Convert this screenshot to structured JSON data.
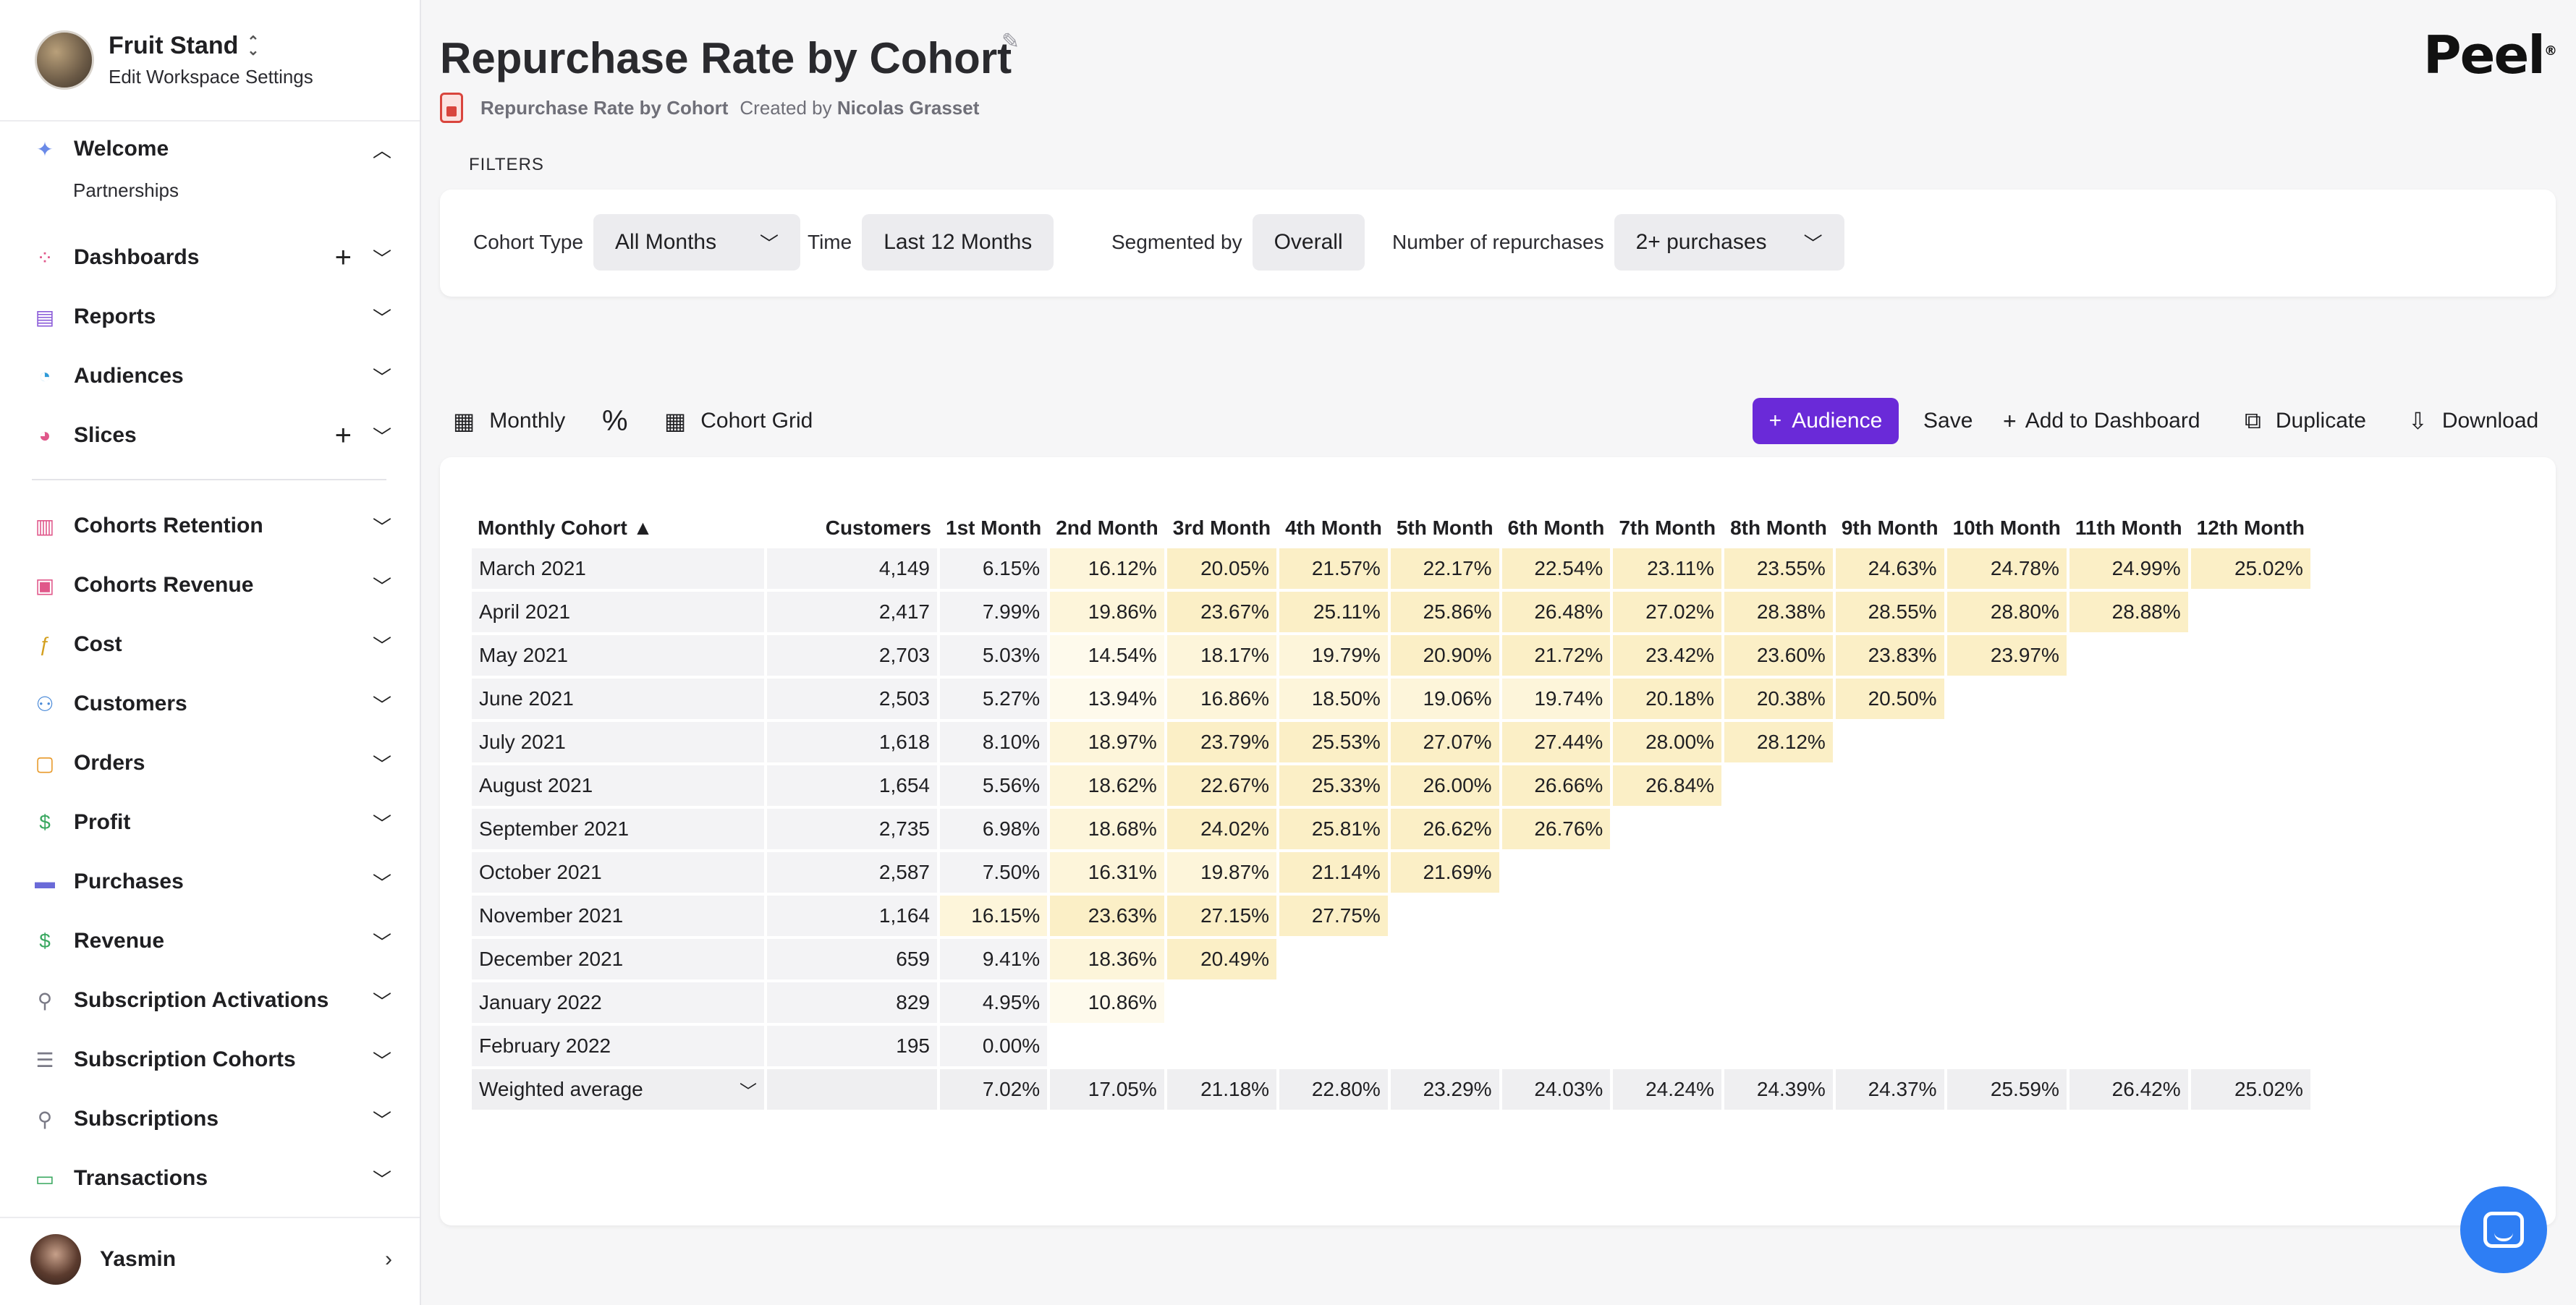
{
  "workspace": {
    "name": "Fruit Stand",
    "sub": "Edit Workspace Settings"
  },
  "nav": {
    "welcome": {
      "label": "Welcome",
      "sub": "Partnerships"
    },
    "items": [
      {
        "label": "Dashboards",
        "icon": "grid-icon",
        "color": "#e0578a",
        "plus": true
      },
      {
        "label": "Reports",
        "icon": "document-icon",
        "color": "#8a5ad8",
        "plus": false
      },
      {
        "label": "Audiences",
        "icon": "flame-icon",
        "color": "#2e9ad8",
        "plus": false
      },
      {
        "label": "Slices",
        "icon": "pie-icon",
        "color": "#e0578a",
        "plus": true
      }
    ],
    "items2": [
      {
        "label": "Cohorts Retention",
        "icon": "jar-icon",
        "color": "#e0578a"
      },
      {
        "label": "Cohorts Revenue",
        "icon": "robot-icon",
        "color": "#e0578a"
      },
      {
        "label": "Cost",
        "icon": "function-icon",
        "color": "#d4a020"
      },
      {
        "label": "Customers",
        "icon": "people-icon",
        "color": "#4a8ad8"
      },
      {
        "label": "Orders",
        "icon": "bag-icon",
        "color": "#e89a2a"
      },
      {
        "label": "Profit",
        "icon": "dollar-icon",
        "color": "#3aa860"
      },
      {
        "label": "Purchases",
        "icon": "card-icon",
        "color": "#6a6ad8"
      },
      {
        "label": "Revenue",
        "icon": "dollar-box-icon",
        "color": "#3aa860"
      },
      {
        "label": "Subscription Activations",
        "icon": "user-check-icon",
        "color": "#7a7a86"
      },
      {
        "label": "Subscription Cohorts",
        "icon": "stack-icon",
        "color": "#7a7a86"
      },
      {
        "label": "Subscriptions",
        "icon": "user-check-icon",
        "color": "#7a7a86"
      },
      {
        "label": "Transactions",
        "icon": "credit-card-icon",
        "color": "#3aa860"
      }
    ]
  },
  "user": {
    "name": "Yasmin"
  },
  "header": {
    "title": "Repurchase Rate by Cohort",
    "sub_title": "Repurchase Rate by Cohort",
    "created_prefix": "Created by",
    "created_by": "Nicolas Grasset",
    "logo": "Peel",
    "filters_label": "FILTERS"
  },
  "filters": {
    "cohort_type": {
      "label": "Cohort Type",
      "value": "All Months"
    },
    "time": {
      "label": "Time",
      "value": "Last 12 Months"
    },
    "segmented": {
      "label": "Segmented by",
      "value": "Overall"
    },
    "repurchases": {
      "label": "Number of repurchases",
      "value": "2+ purchases"
    }
  },
  "toolbar": {
    "monthly": "Monthly",
    "percent": "%",
    "cohort_grid": "Cohort Grid",
    "audience": "Audience",
    "save": "Save",
    "add_dashboard": "Add to Dashboard",
    "duplicate": "Duplicate",
    "download": "Download"
  },
  "table": {
    "headers": [
      "Monthly Cohort ▲",
      "Customers",
      "1st Month",
      "2nd Month",
      "3rd Month",
      "4th Month",
      "5th Month",
      "6th Month",
      "7th Month",
      "8th Month",
      "9th Month",
      "10th Month",
      "11th Month",
      "12th Month"
    ],
    "rows": [
      {
        "cohort": "March 2021",
        "customers": "4,149",
        "values": [
          "6.15%",
          "16.12%",
          "20.05%",
          "21.57%",
          "22.17%",
          "22.54%",
          "23.11%",
          "23.55%",
          "24.63%",
          "24.78%",
          "24.99%",
          "25.02%"
        ]
      },
      {
        "cohort": "April 2021",
        "customers": "2,417",
        "values": [
          "7.99%",
          "19.86%",
          "23.67%",
          "25.11%",
          "25.86%",
          "26.48%",
          "27.02%",
          "28.38%",
          "28.55%",
          "28.80%",
          "28.88%"
        ]
      },
      {
        "cohort": "May 2021",
        "customers": "2,703",
        "values": [
          "5.03%",
          "14.54%",
          "18.17%",
          "19.79%",
          "20.90%",
          "21.72%",
          "23.42%",
          "23.60%",
          "23.83%",
          "23.97%"
        ]
      },
      {
        "cohort": "June 2021",
        "customers": "2,503",
        "values": [
          "5.27%",
          "13.94%",
          "16.86%",
          "18.50%",
          "19.06%",
          "19.74%",
          "20.18%",
          "20.38%",
          "20.50%"
        ]
      },
      {
        "cohort": "July 2021",
        "customers": "1,618",
        "values": [
          "8.10%",
          "18.97%",
          "23.79%",
          "25.53%",
          "27.07%",
          "27.44%",
          "28.00%",
          "28.12%"
        ]
      },
      {
        "cohort": "August 2021",
        "customers": "1,654",
        "values": [
          "5.56%",
          "18.62%",
          "22.67%",
          "25.33%",
          "26.00%",
          "26.66%",
          "26.84%"
        ]
      },
      {
        "cohort": "September 2021",
        "customers": "2,735",
        "values": [
          "6.98%",
          "18.68%",
          "24.02%",
          "25.81%",
          "26.62%",
          "26.76%"
        ]
      },
      {
        "cohort": "October 2021",
        "customers": "2,587",
        "values": [
          "7.50%",
          "16.31%",
          "19.87%",
          "21.14%",
          "21.69%"
        ]
      },
      {
        "cohort": "November 2021",
        "customers": "1,164",
        "values": [
          "16.15%",
          "23.63%",
          "27.15%",
          "27.75%"
        ]
      },
      {
        "cohort": "December 2021",
        "customers": "659",
        "values": [
          "9.41%",
          "18.36%",
          "20.49%"
        ]
      },
      {
        "cohort": "January 2022",
        "customers": "829",
        "values": [
          "4.95%",
          "10.86%"
        ]
      },
      {
        "cohort": "February 2022",
        "customers": "195",
        "values": [
          "0.00%"
        ]
      }
    ],
    "avg": {
      "label": "Weighted average",
      "values": [
        "7.02%",
        "17.05%",
        "21.18%",
        "22.80%",
        "23.29%",
        "24.03%",
        "24.24%",
        "24.39%",
        "24.37%",
        "25.59%",
        "26.42%",
        "25.02%"
      ]
    }
  }
}
